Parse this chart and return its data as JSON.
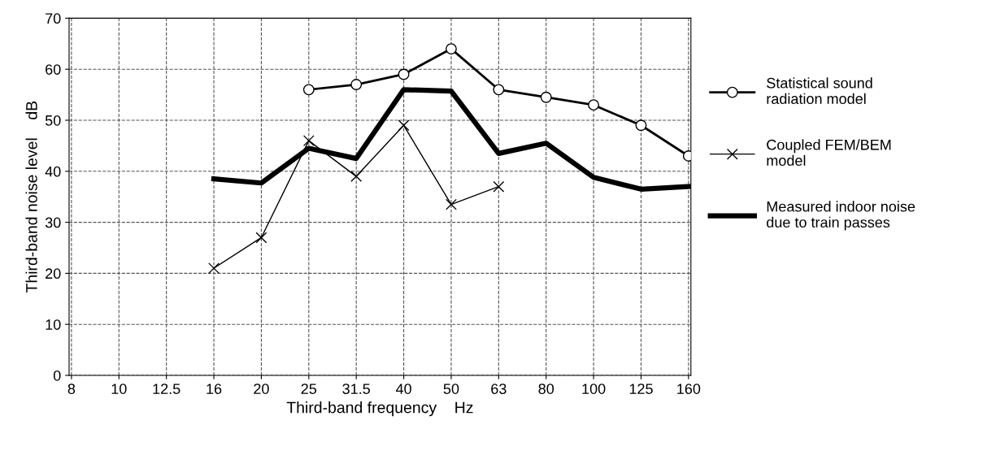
{
  "chart_data": {
    "type": "line",
    "xlabel": "Third-band frequency    Hz",
    "ylabel": "Third-band noise level    dB",
    "categories": [
      "8",
      "10",
      "12.5",
      "16",
      "20",
      "25",
      "31.5",
      "40",
      "50",
      "63",
      "80",
      "100",
      "125",
      "160"
    ],
    "series": [
      {
        "name": "Statistical sound\nradiation model",
        "color": "#000000",
        "marker": "circle",
        "values": [
          null,
          null,
          null,
          null,
          null,
          56,
          57,
          59,
          64,
          56,
          54.5,
          53,
          49,
          43
        ]
      },
      {
        "name": "Coupled FEM/BEM\nmodel",
        "color": "#000000",
        "marker": "cross",
        "values": [
          null,
          null,
          null,
          21,
          27,
          46,
          39,
          49,
          33.5,
          37,
          null,
          null,
          null,
          null
        ]
      },
      {
        "name": "Measured indoor noise\ndue to train passes",
        "color": "#000000",
        "marker": "none",
        "values": [
          null,
          null,
          null,
          38.5,
          37.7,
          44.5,
          42.5,
          56,
          55.7,
          43.5,
          45.5,
          38.8,
          36.5,
          37
        ]
      }
    ],
    "ylim": [
      0,
      70
    ],
    "yticks": [
      0,
      10,
      20,
      30,
      40,
      50,
      60,
      70
    ],
    "grid": true,
    "legend": "right"
  }
}
